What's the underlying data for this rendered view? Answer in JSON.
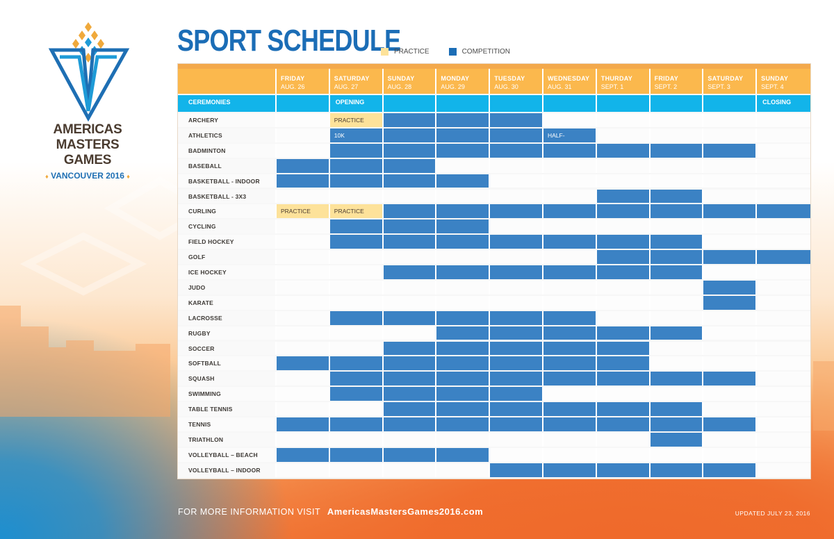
{
  "logo": {
    "line1": "AMERICAS",
    "line2": "MASTERS GAMES",
    "line3": "VANCOUVER 2016",
    "diamond": "♦"
  },
  "title": "SPORT SCHEDULE",
  "legend": {
    "practice": "PRACTICE",
    "competition": "COMPETITION"
  },
  "colors": {
    "practice": "#fde29a",
    "competition": "#3b82c4",
    "header": "#fbb84d",
    "ceremonies": "#12b4ea",
    "title": "#1b6db6"
  },
  "days": [
    {
      "day": "FRIDAY",
      "date": "AUG. 26"
    },
    {
      "day": "SATURDAY",
      "date": "AUG. 27"
    },
    {
      "day": "SUNDAY",
      "date": "AUG. 28"
    },
    {
      "day": "MONDAY",
      "date": "AUG. 29"
    },
    {
      "day": "TUESDAY",
      "date": "AUG. 30"
    },
    {
      "day": "WEDNESDAY",
      "date": "AUG. 31"
    },
    {
      "day": "THURDAY",
      "date": "SEPT. 1"
    },
    {
      "day": "FRIDAY",
      "date": "SEPT. 2"
    },
    {
      "day": "SATURDAY",
      "date": "SEPT. 3"
    },
    {
      "day": "SUNDAY",
      "date": "SEPT. 4"
    }
  ],
  "ceremonies": {
    "label": "CEREMONIES",
    "cells": [
      "",
      "OPENING",
      "",
      "",
      "",
      "",
      "",
      "",
      "",
      "CLOSING"
    ]
  },
  "sports": [
    {
      "name": "ARCHERY",
      "cells": [
        "",
        "P",
        "C",
        "C",
        "C",
        "",
        "",
        "",
        "",
        ""
      ],
      "text": [
        "",
        "PRACTICE",
        "",
        "",
        "",
        "",
        "",
        "",
        "",
        ""
      ]
    },
    {
      "name": "ATHLETICS",
      "cells": [
        "",
        "C",
        "C",
        "C",
        "C",
        "C",
        "",
        "",
        "",
        ""
      ],
      "text": [
        "",
        "10K",
        "",
        "",
        "",
        "HALF-MARATHON",
        "",
        "",
        "",
        ""
      ]
    },
    {
      "name": "BADMINTON",
      "cells": [
        "",
        "C",
        "C",
        "C",
        "C",
        "C",
        "C",
        "C",
        "C",
        ""
      ]
    },
    {
      "name": "BASEBALL",
      "cells": [
        "C",
        "C",
        "C",
        "",
        "",
        "",
        "",
        "",
        "",
        ""
      ]
    },
    {
      "name": "BASKETBALL - INDOOR",
      "cells": [
        "C",
        "C",
        "C",
        "C",
        "",
        "",
        "",
        "",
        "",
        ""
      ]
    },
    {
      "name": "BASKETBALL - 3X3",
      "cells": [
        "",
        "",
        "",
        "",
        "",
        "",
        "C",
        "C",
        "",
        ""
      ]
    },
    {
      "name": "CURLING",
      "cells": [
        "P",
        "P",
        "C",
        "C",
        "C",
        "C",
        "C",
        "C",
        "C",
        "C"
      ],
      "text": [
        "PRACTICE",
        "PRACTICE",
        "",
        "",
        "",
        "",
        "",
        "",
        "",
        ""
      ]
    },
    {
      "name": "CYCLING",
      "cells": [
        "",
        "C",
        "C",
        "C",
        "",
        "",
        "",
        "",
        "",
        ""
      ]
    },
    {
      "name": "FIELD HOCKEY",
      "cells": [
        "",
        "C",
        "C",
        "C",
        "C",
        "C",
        "C",
        "C",
        "",
        ""
      ]
    },
    {
      "name": "GOLF",
      "cells": [
        "",
        "",
        "",
        "",
        "",
        "",
        "C",
        "C",
        "C",
        "C"
      ]
    },
    {
      "name": "ICE HOCKEY",
      "cells": [
        "",
        "",
        "C",
        "C",
        "C",
        "C",
        "C",
        "C",
        "",
        ""
      ]
    },
    {
      "name": "JUDO",
      "cells": [
        "",
        "",
        "",
        "",
        "",
        "",
        "",
        "",
        "C",
        ""
      ]
    },
    {
      "name": "KARATE",
      "cells": [
        "",
        "",
        "",
        "",
        "",
        "",
        "",
        "",
        "C",
        ""
      ]
    },
    {
      "name": "LACROSSE",
      "cells": [
        "",
        "C",
        "C",
        "C",
        "C",
        "C",
        "",
        "",
        "",
        ""
      ]
    },
    {
      "name": "RUGBY",
      "cells": [
        "",
        "",
        "",
        "C",
        "C",
        "C",
        "C",
        "C",
        "",
        ""
      ]
    },
    {
      "name": "SOCCER",
      "cells": [
        "",
        "",
        "C",
        "C",
        "C",
        "C",
        "C",
        "",
        "",
        ""
      ]
    },
    {
      "name": "SOFTBALL",
      "cells": [
        "C",
        "C",
        "C",
        "C",
        "C",
        "C",
        "C",
        "",
        "",
        ""
      ]
    },
    {
      "name": "SQUASH",
      "cells": [
        "",
        "C",
        "C",
        "C",
        "C",
        "C",
        "C",
        "C",
        "C",
        ""
      ]
    },
    {
      "name": "SWIMMING",
      "cells": [
        "",
        "C",
        "C",
        "C",
        "C",
        "",
        "",
        "",
        "",
        ""
      ]
    },
    {
      "name": "TABLE TENNIS",
      "cells": [
        "",
        "",
        "C",
        "C",
        "C",
        "C",
        "C",
        "C",
        "",
        ""
      ]
    },
    {
      "name": "TENNIS",
      "cells": [
        "C",
        "C",
        "C",
        "C",
        "C",
        "C",
        "C",
        "C",
        "C",
        ""
      ]
    },
    {
      "name": "TRIATHLON",
      "cells": [
        "",
        "",
        "",
        "",
        "",
        "",
        "",
        "C",
        "",
        ""
      ]
    },
    {
      "name": "VOLLEYBALL – BEACH",
      "cells": [
        "C",
        "C",
        "C",
        "C",
        "",
        "",
        "",
        "",
        "",
        ""
      ]
    },
    {
      "name": "VOLLEYBALL – INDOOR",
      "cells": [
        "",
        "",
        "",
        "",
        "C",
        "C",
        "C",
        "C",
        "C",
        ""
      ]
    }
  ],
  "footer": {
    "prefix": "FOR MORE INFORMATION VISIT",
    "url": "AmericasMastersGames2016.com",
    "updated": "UPDATED JULY 23, 2016"
  }
}
